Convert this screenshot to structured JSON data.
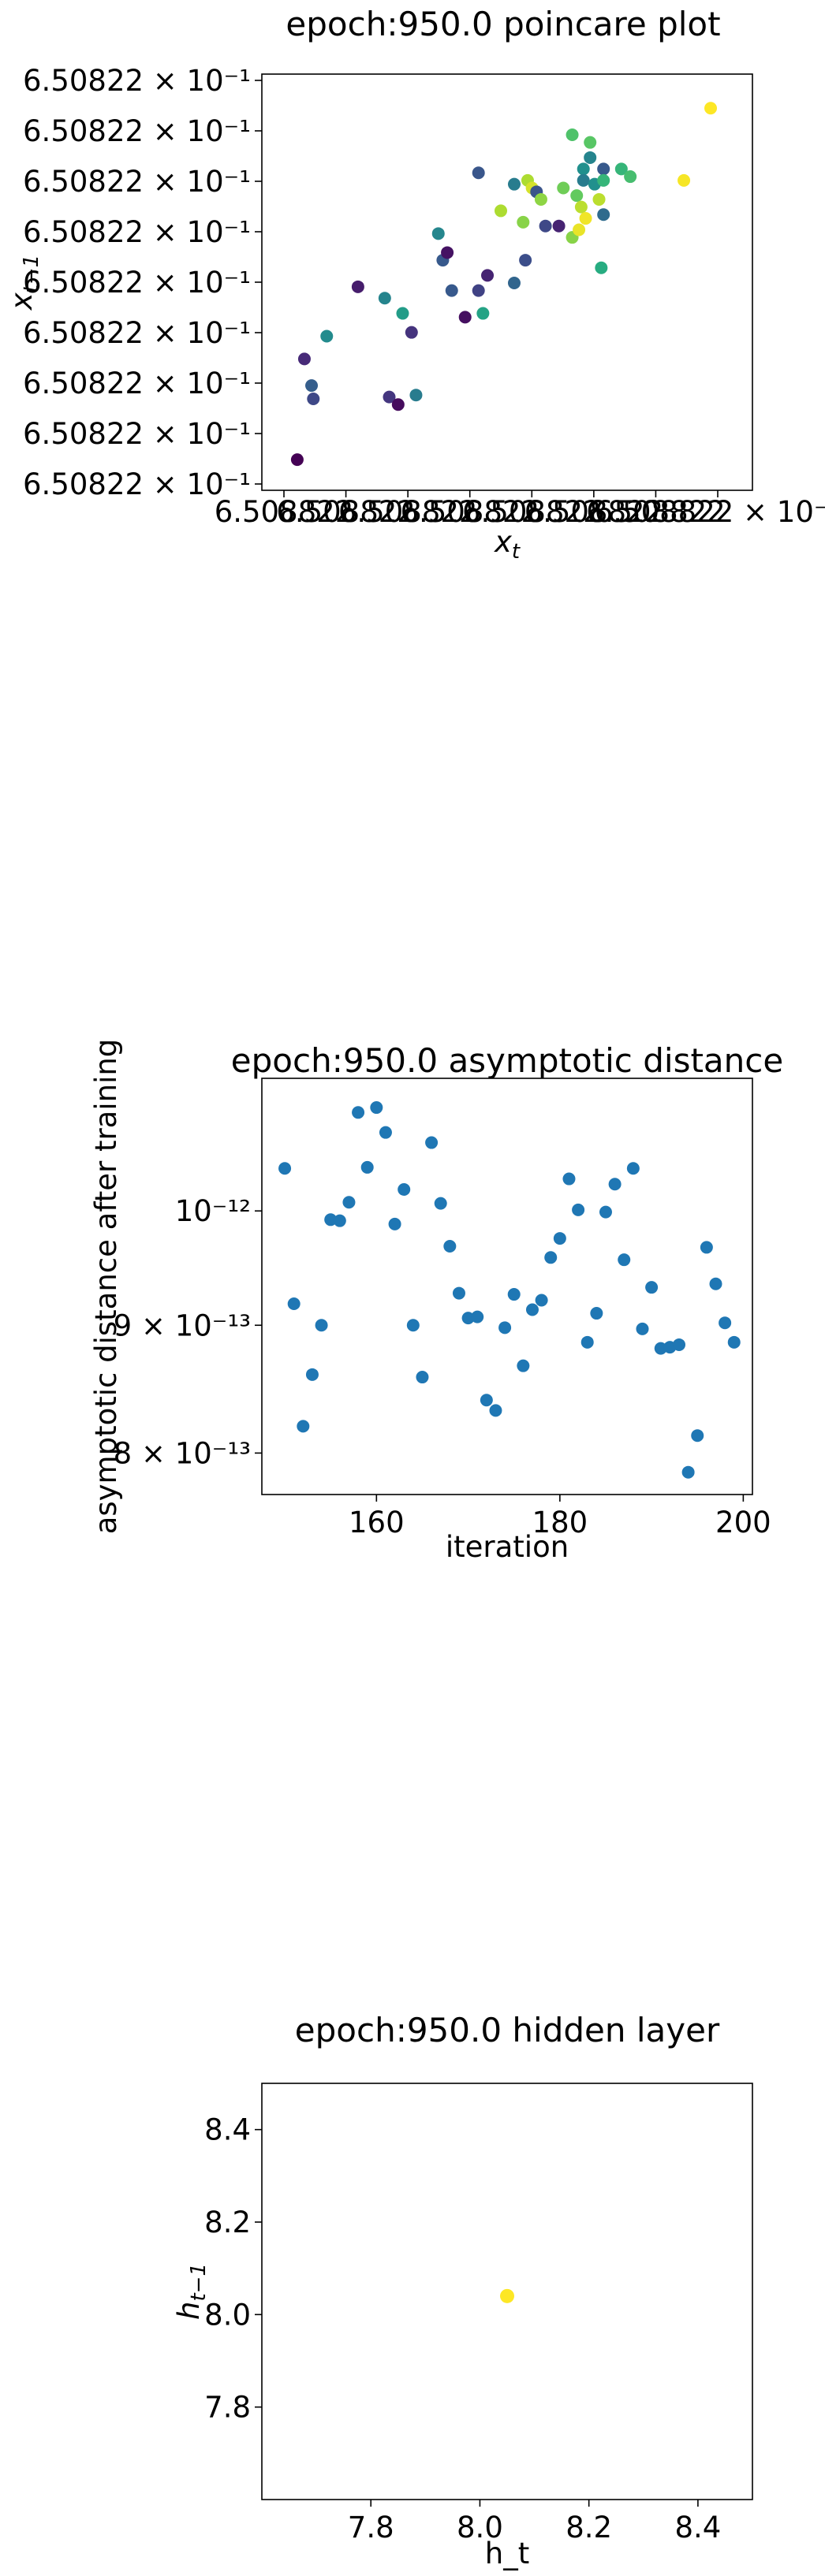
{
  "chart_data": [
    {
      "type": "scatter",
      "title": "epoch:950.0 poincare plot",
      "xlabel": "x",
      "xlabel_sub": "t",
      "ylabel": "x",
      "ylabel_sub": "t−1",
      "x_tick_labels": [
        "6.508822",
        "6.508822",
        "6.508822",
        "6.508822",
        "6.508822",
        "6.508822",
        "6.508822",
        "6.508822 × 10⁻¹"
      ],
      "y_tick_labels": [
        "6.50822 × 10⁻¹",
        "6.50822 × 10⁻¹",
        "6.50822 × 10⁻¹",
        "6.50822 × 10⁻¹",
        "6.50822 × 10⁻¹",
        "6.50822 × 10⁻¹",
        "6.50822 × 10⁻¹",
        "6.50822 × 10⁻¹",
        "6.50822 × 10⁻¹"
      ],
      "color_scale": "viridis",
      "xlim": [
        0,
        1
      ],
      "ylim": [
        0,
        1
      ],
      "points": [
        {
          "x": 0.044,
          "y": 0.035,
          "c": 0.0
        },
        {
          "x": 0.06,
          "y": 0.3,
          "c": 0.12
        },
        {
          "x": 0.076,
          "y": 0.23,
          "c": 0.3
        },
        {
          "x": 0.08,
          "y": 0.195,
          "c": 0.22
        },
        {
          "x": 0.11,
          "y": 0.36,
          "c": 0.48
        },
        {
          "x": 0.18,
          "y": 0.49,
          "c": 0.08
        },
        {
          "x": 0.24,
          "y": 0.46,
          "c": 0.45
        },
        {
          "x": 0.28,
          "y": 0.42,
          "c": 0.55
        },
        {
          "x": 0.3,
          "y": 0.37,
          "c": 0.15
        },
        {
          "x": 0.25,
          "y": 0.2,
          "c": 0.16
        },
        {
          "x": 0.27,
          "y": 0.18,
          "c": 0.03
        },
        {
          "x": 0.31,
          "y": 0.205,
          "c": 0.42
        },
        {
          "x": 0.36,
          "y": 0.63,
          "c": 0.46
        },
        {
          "x": 0.37,
          "y": 0.56,
          "c": 0.28
        },
        {
          "x": 0.38,
          "y": 0.58,
          "c": 0.05
        },
        {
          "x": 0.39,
          "y": 0.48,
          "c": 0.28
        },
        {
          "x": 0.42,
          "y": 0.41,
          "c": 0.04
        },
        {
          "x": 0.45,
          "y": 0.79,
          "c": 0.27
        },
        {
          "x": 0.45,
          "y": 0.48,
          "c": 0.2
        },
        {
          "x": 0.46,
          "y": 0.42,
          "c": 0.58
        },
        {
          "x": 0.47,
          "y": 0.52,
          "c": 0.1
        },
        {
          "x": 0.5,
          "y": 0.69,
          "c": 0.88
        },
        {
          "x": 0.53,
          "y": 0.76,
          "c": 0.42
        },
        {
          "x": 0.53,
          "y": 0.5,
          "c": 0.33
        },
        {
          "x": 0.55,
          "y": 0.66,
          "c": 0.82
        },
        {
          "x": 0.555,
          "y": 0.56,
          "c": 0.24
        },
        {
          "x": 0.56,
          "y": 0.77,
          "c": 0.88
        },
        {
          "x": 0.57,
          "y": 0.75,
          "c": 0.94
        },
        {
          "x": 0.58,
          "y": 0.74,
          "c": 0.26
        },
        {
          "x": 0.59,
          "y": 0.72,
          "c": 0.83
        },
        {
          "x": 0.6,
          "y": 0.65,
          "c": 0.22
        },
        {
          "x": 0.64,
          "y": 0.75,
          "c": 0.78
        },
        {
          "x": 0.63,
          "y": 0.65,
          "c": 0.1
        },
        {
          "x": 0.66,
          "y": 0.89,
          "c": 0.72
        },
        {
          "x": 0.66,
          "y": 0.62,
          "c": 0.82
        },
        {
          "x": 0.67,
          "y": 0.73,
          "c": 0.76
        },
        {
          "x": 0.675,
          "y": 0.64,
          "c": 0.97
        },
        {
          "x": 0.68,
          "y": 0.7,
          "c": 0.9
        },
        {
          "x": 0.685,
          "y": 0.8,
          "c": 0.5
        },
        {
          "x": 0.685,
          "y": 0.77,
          "c": 0.42
        },
        {
          "x": 0.69,
          "y": 0.67,
          "c": 0.98
        },
        {
          "x": 0.7,
          "y": 0.87,
          "c": 0.74
        },
        {
          "x": 0.7,
          "y": 0.83,
          "c": 0.45
        },
        {
          "x": 0.71,
          "y": 0.76,
          "c": 0.5
        },
        {
          "x": 0.72,
          "y": 0.72,
          "c": 0.9
        },
        {
          "x": 0.725,
          "y": 0.54,
          "c": 0.62
        },
        {
          "x": 0.73,
          "y": 0.8,
          "c": 0.28
        },
        {
          "x": 0.73,
          "y": 0.77,
          "c": 0.66
        },
        {
          "x": 0.73,
          "y": 0.68,
          "c": 0.35
        },
        {
          "x": 0.77,
          "y": 0.8,
          "c": 0.66
        },
        {
          "x": 0.79,
          "y": 0.78,
          "c": 0.7
        },
        {
          "x": 0.91,
          "y": 0.77,
          "c": 0.99
        },
        {
          "x": 0.97,
          "y": 0.96,
          "c": 1.0
        }
      ]
    },
    {
      "type": "scatter",
      "title": "epoch:950.0 asymptotic distance",
      "xlabel": "iteration",
      "ylabel": "asymptotic distance after training",
      "y_scale": "log",
      "xlim": [
        147.5,
        201
      ],
      "ylim": [
        7.7e-13,
        1.13e-12
      ],
      "x_ticks": [
        160,
        180,
        200
      ],
      "x_tick_labels": [
        "160",
        "180",
        "200"
      ],
      "y_ticks": [
        8e-13,
        9e-13,
        1e-12
      ],
      "y_tick_labels": [
        "8 × 10⁻¹³",
        "9 × 10⁻¹³",
        "10⁻¹²"
      ],
      "color": "#1f77b4",
      "x": [
        150,
        151,
        152,
        153,
        154,
        155,
        156,
        157,
        158,
        159,
        160,
        161,
        162,
        163,
        164,
        165,
        166,
        167,
        168,
        169,
        170,
        171,
        172,
        173,
        174,
        175,
        176,
        177,
        178,
        179,
        180,
        181,
        182,
        183,
        184,
        185,
        186,
        187,
        188,
        189,
        190,
        191,
        192,
        193,
        194,
        195,
        196,
        197,
        198,
        199
      ],
      "y": [
        1.04e-12,
        9.18e-13,
        8.2e-13,
        8.6e-13,
        9e-13,
        9.92e-13,
        9.91e-13,
        1.008e-12,
        1.095e-12,
        1.041e-12,
        1.1e-12,
        1.075e-12,
        9.88e-13,
        1.02e-12,
        9e-13,
        8.58e-13,
        1.065e-12,
        1.007e-12,
        9.68e-13,
        9.27e-13,
        9.06e-13,
        9.07e-13,
        8.4e-13,
        8.32e-13,
        8.98e-13,
        9.26e-13,
        8.67e-13,
        9.13e-13,
        9.21e-13,
        9.58e-13,
        9.75e-13,
        1.03e-12,
        1.001e-12,
        8.86e-13,
        9.1e-13,
        9.99e-13,
        1.025e-12,
        9.56e-13,
        1.04e-12,
        8.97e-13,
        9.32e-13,
        8.81e-13,
        8.82e-13,
        8.84e-13,
        7.86e-13,
        8.13e-13,
        9.67e-13,
        9.35e-13,
        9.02e-13,
        8.86e-13
      ]
    },
    {
      "type": "scatter",
      "title": "epoch:950.0 hidden layer",
      "xlabel": "h_t",
      "ylabel": "h",
      "ylabel_sub": "t−1",
      "xlim": [
        7.6,
        8.5
      ],
      "ylim": [
        7.6,
        8.5
      ],
      "x_ticks": [
        7.8,
        8.0,
        8.2,
        8.4
      ],
      "x_tick_labels": [
        "7.8",
        "8.0",
        "8.2",
        "8.4"
      ],
      "y_ticks": [
        7.8,
        8.0,
        8.2,
        8.4
      ],
      "y_tick_labels": [
        "7.8",
        "8.0",
        "8.2",
        "8.4"
      ],
      "color": "#fde725",
      "x": [
        8.05
      ],
      "y": [
        8.04
      ]
    }
  ]
}
